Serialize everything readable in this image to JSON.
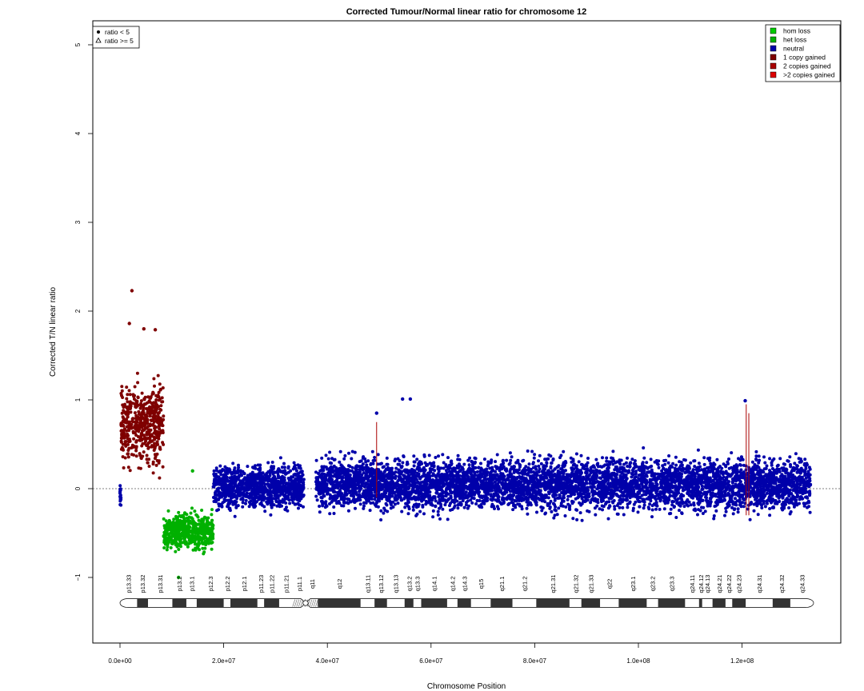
{
  "chart_data": {
    "type": "scatter",
    "title": "Corrected Tumour/Normal linear ratio for chromosome  12",
    "xlabel": "Chromosome Position",
    "ylabel": "Corrected T/N linear ratio",
    "xlim": [
      -5000000,
      139000000
    ],
    "ylim": [
      -1.75,
      5.3
    ],
    "x_ticks": [
      0,
      20000000,
      40000000,
      60000000,
      80000000,
      100000000,
      120000000
    ],
    "x_tick_labels": [
      "0.0e+00",
      "2.0e+07",
      "4.0e+07",
      "6.0e+07",
      "8.0e+07",
      "1.0e+08",
      "1.2e+08"
    ],
    "y_ticks": [
      -1,
      0,
      1,
      2,
      3,
      4,
      5
    ],
    "y_tick_labels": [
      "−1",
      "0",
      "1",
      "2",
      "3",
      "4",
      "5"
    ],
    "reference_line": 0,
    "marker_legend": [
      {
        "label": "ratio < 5",
        "symbol": "dot"
      },
      {
        "label": "ratio >= 5",
        "symbol": "triangle"
      }
    ],
    "state_legend": [
      {
        "label": "hom loss",
        "color": "#00cc00"
      },
      {
        "label": "het loss",
        "color": "#00b000"
      },
      {
        "label": "neutral",
        "color": "#0000aa"
      },
      {
        "label": "1 copy gained",
        "color": "#7f0000"
      },
      {
        "label": "2 copies gained",
        "color": "#aa0000"
      },
      {
        "label": ">2 copies gained",
        "color": "#dd0000"
      }
    ],
    "segments": [
      {
        "state": "neutral",
        "start": 0,
        "end": 200000,
        "mean": -0.1,
        "spread": 0.1
      },
      {
        "state": "1 copy gained",
        "start": 200000,
        "end": 8400000,
        "mean": 0.73,
        "spread": 0.3
      },
      {
        "state": "het loss",
        "start": 8400000,
        "end": 18000000,
        "mean": -0.48,
        "spread": 0.13
      },
      {
        "state": "neutral",
        "start": 18000000,
        "end": 35500000,
        "mean": 0.02,
        "spread": 0.17
      },
      {
        "state": "neutral",
        "start": 37800000,
        "end": 133200000,
        "mean": 0.05,
        "spread": 0.19
      }
    ],
    "notable_points": [
      {
        "x": 2300000,
        "y": 2.23,
        "state": "1 copy gained"
      },
      {
        "x": 1800000,
        "y": 1.86,
        "state": "1 copy gained"
      },
      {
        "x": 4600000,
        "y": 1.8,
        "state": "1 copy gained"
      },
      {
        "x": 6800000,
        "y": 1.79,
        "state": "1 copy gained"
      },
      {
        "x": 11300000,
        "y": -1.0,
        "state": "het loss"
      },
      {
        "x": 14000000,
        "y": 0.2,
        "state": "het loss"
      },
      {
        "x": 54500000,
        "y": 1.01,
        "state": "neutral"
      },
      {
        "x": 56000000,
        "y": 1.01,
        "state": "neutral"
      },
      {
        "x": 120600000,
        "y": 0.99,
        "state": "neutral"
      },
      {
        "x": 49500000,
        "y": 0.85,
        "state": "neutral"
      }
    ],
    "gain_marks": [
      {
        "x": 49500000,
        "low": -0.1,
        "high": 0.75
      },
      {
        "x": 120800000,
        "low": -0.3,
        "high": 0.95
      },
      {
        "x": 121300000,
        "low": -0.3,
        "high": 0.85
      }
    ],
    "cytobands": [
      {
        "name": "p13.33",
        "start": 0,
        "end": 3300000,
        "stain": "gneg"
      },
      {
        "name": "p13.32",
        "start": 3300000,
        "end": 5400000,
        "stain": "gpos"
      },
      {
        "name": "p13.31",
        "start": 5400000,
        "end": 10100000,
        "stain": "gneg"
      },
      {
        "name": "p13.2",
        "start": 10100000,
        "end": 12800000,
        "stain": "gpos"
      },
      {
        "name": "p13.1",
        "start": 12800000,
        "end": 14800000,
        "stain": "gneg"
      },
      {
        "name": "p12.3",
        "start": 14800000,
        "end": 20000000,
        "stain": "gpos"
      },
      {
        "name": "p12.2",
        "start": 20000000,
        "end": 21300000,
        "stain": "gneg"
      },
      {
        "name": "p12.1",
        "start": 21300000,
        "end": 26500000,
        "stain": "gpos"
      },
      {
        "name": "p11.23",
        "start": 26500000,
        "end": 27800000,
        "stain": "gneg"
      },
      {
        "name": "p11.22",
        "start": 27800000,
        "end": 30700000,
        "stain": "gpos"
      },
      {
        "name": "p11.21",
        "start": 30700000,
        "end": 33300000,
        "stain": "gneg"
      },
      {
        "name": "p11.1",
        "start": 33300000,
        "end": 35800000,
        "stain": "acen"
      },
      {
        "name": "q11",
        "start": 35800000,
        "end": 38200000,
        "stain": "acen"
      },
      {
        "name": "q12",
        "start": 38200000,
        "end": 46400000,
        "stain": "gpos"
      },
      {
        "name": "q13.11",
        "start": 46400000,
        "end": 49100000,
        "stain": "gneg"
      },
      {
        "name": "q13.12",
        "start": 49100000,
        "end": 51500000,
        "stain": "gpos"
      },
      {
        "name": "q13.13",
        "start": 51500000,
        "end": 54900000,
        "stain": "gneg"
      },
      {
        "name": "q13.2",
        "start": 54900000,
        "end": 56600000,
        "stain": "gpos"
      },
      {
        "name": "q13.3",
        "start": 56600000,
        "end": 58100000,
        "stain": "gneg"
      },
      {
        "name": "q14.1",
        "start": 58100000,
        "end": 63100000,
        "stain": "gpos"
      },
      {
        "name": "q14.2",
        "start": 63100000,
        "end": 65100000,
        "stain": "gneg"
      },
      {
        "name": "q14.3",
        "start": 65100000,
        "end": 67700000,
        "stain": "gpos"
      },
      {
        "name": "q15",
        "start": 67700000,
        "end": 71500000,
        "stain": "gneg"
      },
      {
        "name": "q21.1",
        "start": 71500000,
        "end": 75700000,
        "stain": "gpos"
      },
      {
        "name": "q21.2",
        "start": 75700000,
        "end": 80300000,
        "stain": "gneg"
      },
      {
        "name": "q21.31",
        "start": 80300000,
        "end": 86700000,
        "stain": "gpos"
      },
      {
        "name": "q21.32",
        "start": 86700000,
        "end": 89000000,
        "stain": "gneg"
      },
      {
        "name": "q21.33",
        "start": 89000000,
        "end": 92600000,
        "stain": "gpos"
      },
      {
        "name": "q22",
        "start": 92600000,
        "end": 96200000,
        "stain": "gneg"
      },
      {
        "name": "q23.1",
        "start": 96200000,
        "end": 101600000,
        "stain": "gpos"
      },
      {
        "name": "q23.2",
        "start": 101600000,
        "end": 103800000,
        "stain": "gneg"
      },
      {
        "name": "q23.3",
        "start": 103800000,
        "end": 109000000,
        "stain": "gpos"
      },
      {
        "name": "q24.11",
        "start": 109000000,
        "end": 111700000,
        "stain": "gneg"
      },
      {
        "name": "q24.12",
        "start": 111700000,
        "end": 112300000,
        "stain": "gpos"
      },
      {
        "name": "q24.13",
        "start": 112300000,
        "end": 114300000,
        "stain": "gneg"
      },
      {
        "name": "q24.21",
        "start": 114300000,
        "end": 116800000,
        "stain": "gpos"
      },
      {
        "name": "q24.22",
        "start": 116800000,
        "end": 118100000,
        "stain": "gneg"
      },
      {
        "name": "q24.23",
        "start": 118100000,
        "end": 120700000,
        "stain": "gpos"
      },
      {
        "name": "q24.31",
        "start": 120700000,
        "end": 125900000,
        "stain": "gneg"
      },
      {
        "name": "q24.32",
        "start": 125900000,
        "end": 129300000,
        "stain": "gpos"
      },
      {
        "name": "q24.33",
        "start": 129300000,
        "end": 133800000,
        "stain": "gneg"
      }
    ]
  }
}
